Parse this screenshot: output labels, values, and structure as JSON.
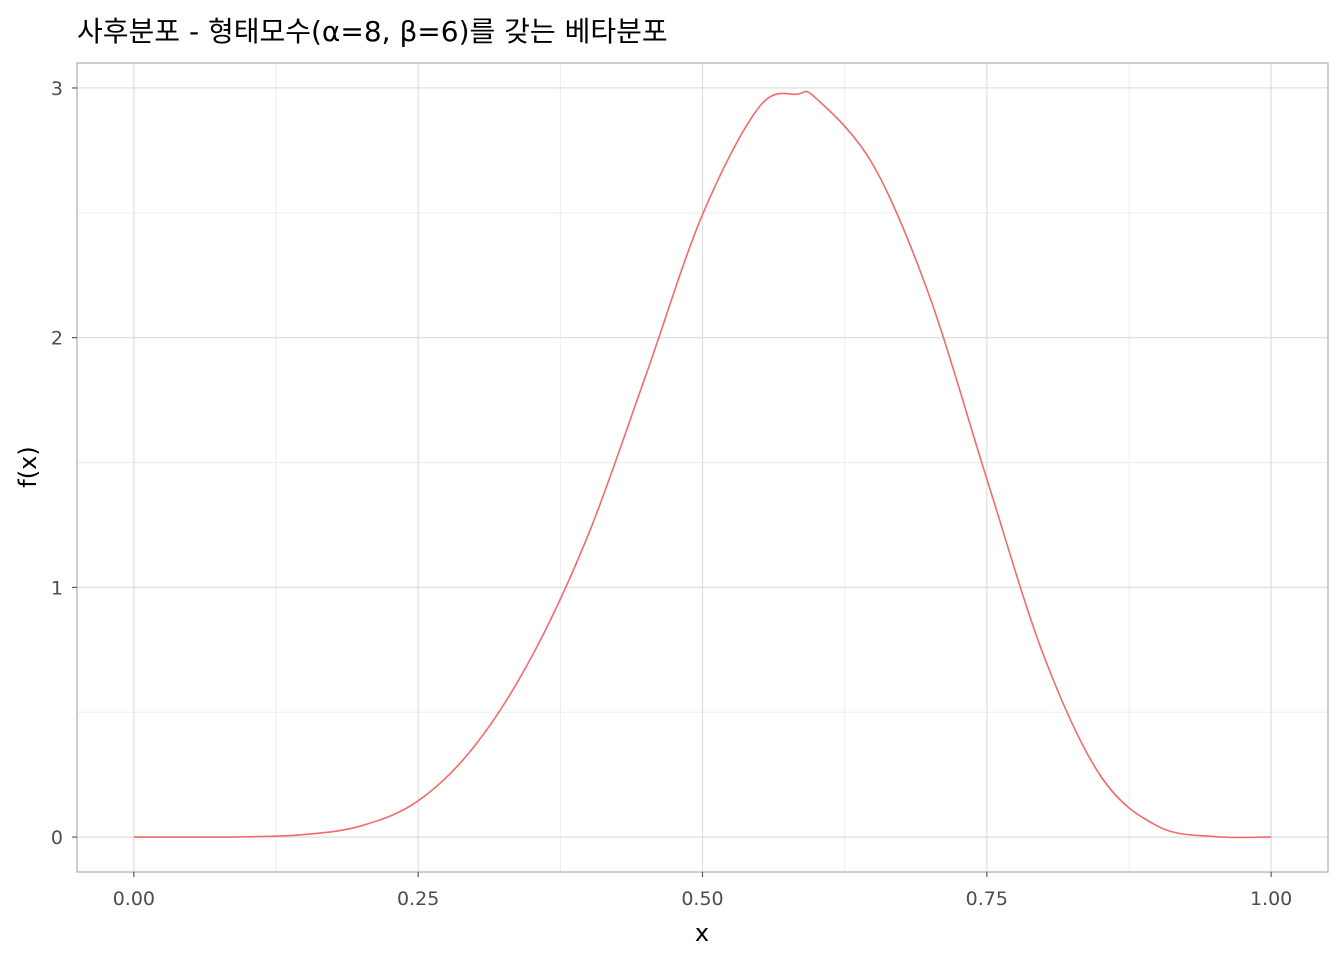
{
  "chart_data": {
    "type": "line",
    "title": "사후분포 - 형태모수(α=8, β=6)를 갖는 베타분포",
    "xlabel": "x",
    "ylabel": "f(x)",
    "xlim": [
      -0.05,
      1.05
    ],
    "ylim": [
      -0.14,
      3.1
    ],
    "x_ticks": [
      0.0,
      0.25,
      0.5,
      0.75,
      1.0
    ],
    "x_tick_labels": [
      "0.00",
      "0.25",
      "0.50",
      "0.75",
      "1.00"
    ],
    "y_ticks": [
      0,
      1,
      2,
      3
    ],
    "y_tick_labels": [
      "0",
      "1",
      "2",
      "3"
    ],
    "grid": true,
    "series": [
      {
        "color": "#f26b6b",
        "x": [
          0.0,
          0.05,
          0.1,
          0.15,
          0.2,
          0.25,
          0.3,
          0.35,
          0.4,
          0.45,
          0.5,
          0.55,
          0.5833,
          0.6,
          0.65,
          0.7,
          0.75,
          0.8,
          0.85,
          0.9,
          0.95,
          1.0
        ],
        "y": [
          0.0,
          0.0,
          0.001,
          0.01,
          0.045,
          0.145,
          0.367,
          0.724,
          1.216,
          1.847,
          2.493,
          2.925,
          2.975,
          2.958,
          2.692,
          2.161,
          1.434,
          0.727,
          0.245,
          0.044,
          0.002,
          0.0
        ]
      }
    ]
  }
}
